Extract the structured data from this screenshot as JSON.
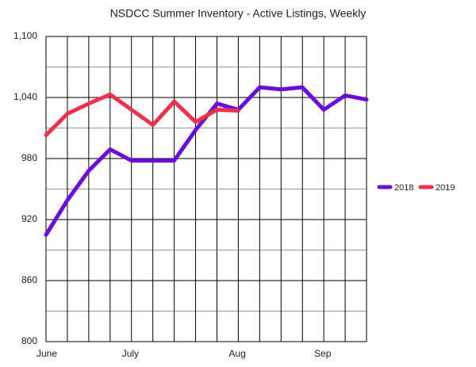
{
  "chart_data": {
    "type": "line",
    "title": "NSDCC Summer Inventory - Active Listings, Weekly",
    "categories": [
      "June",
      null,
      null,
      null,
      "July",
      null,
      null,
      null,
      null,
      "Aug",
      null,
      null,
      null,
      "Sep",
      null,
      null
    ],
    "series": [
      {
        "name": "2018",
        "color": "#6a0dd9",
        "values": [
          905,
          939,
          968,
          989,
          978,
          978,
          978,
          1008,
          1034,
          1028,
          1050,
          1048,
          1050,
          1028,
          1042,
          1038
        ]
      },
      {
        "name": "2019",
        "color": "#f0304f",
        "values": [
          1003,
          1024,
          1034,
          1043,
          1028,
          1013,
          1036,
          1016,
          1028,
          1027,
          null,
          null,
          null,
          null,
          null,
          null
        ]
      }
    ],
    "ylim": [
      800,
      1100
    ],
    "yticks": [
      {
        "value": 800,
        "label": "800"
      },
      {
        "value": 860,
        "label": "860"
      },
      {
        "value": 920,
        "label": "920"
      },
      {
        "value": 980,
        "label": "980"
      },
      {
        "value": 1040,
        "label": "1,040"
      },
      {
        "value": 1100,
        "label": "1,100"
      }
    ],
    "grid": true,
    "legend": "right"
  }
}
